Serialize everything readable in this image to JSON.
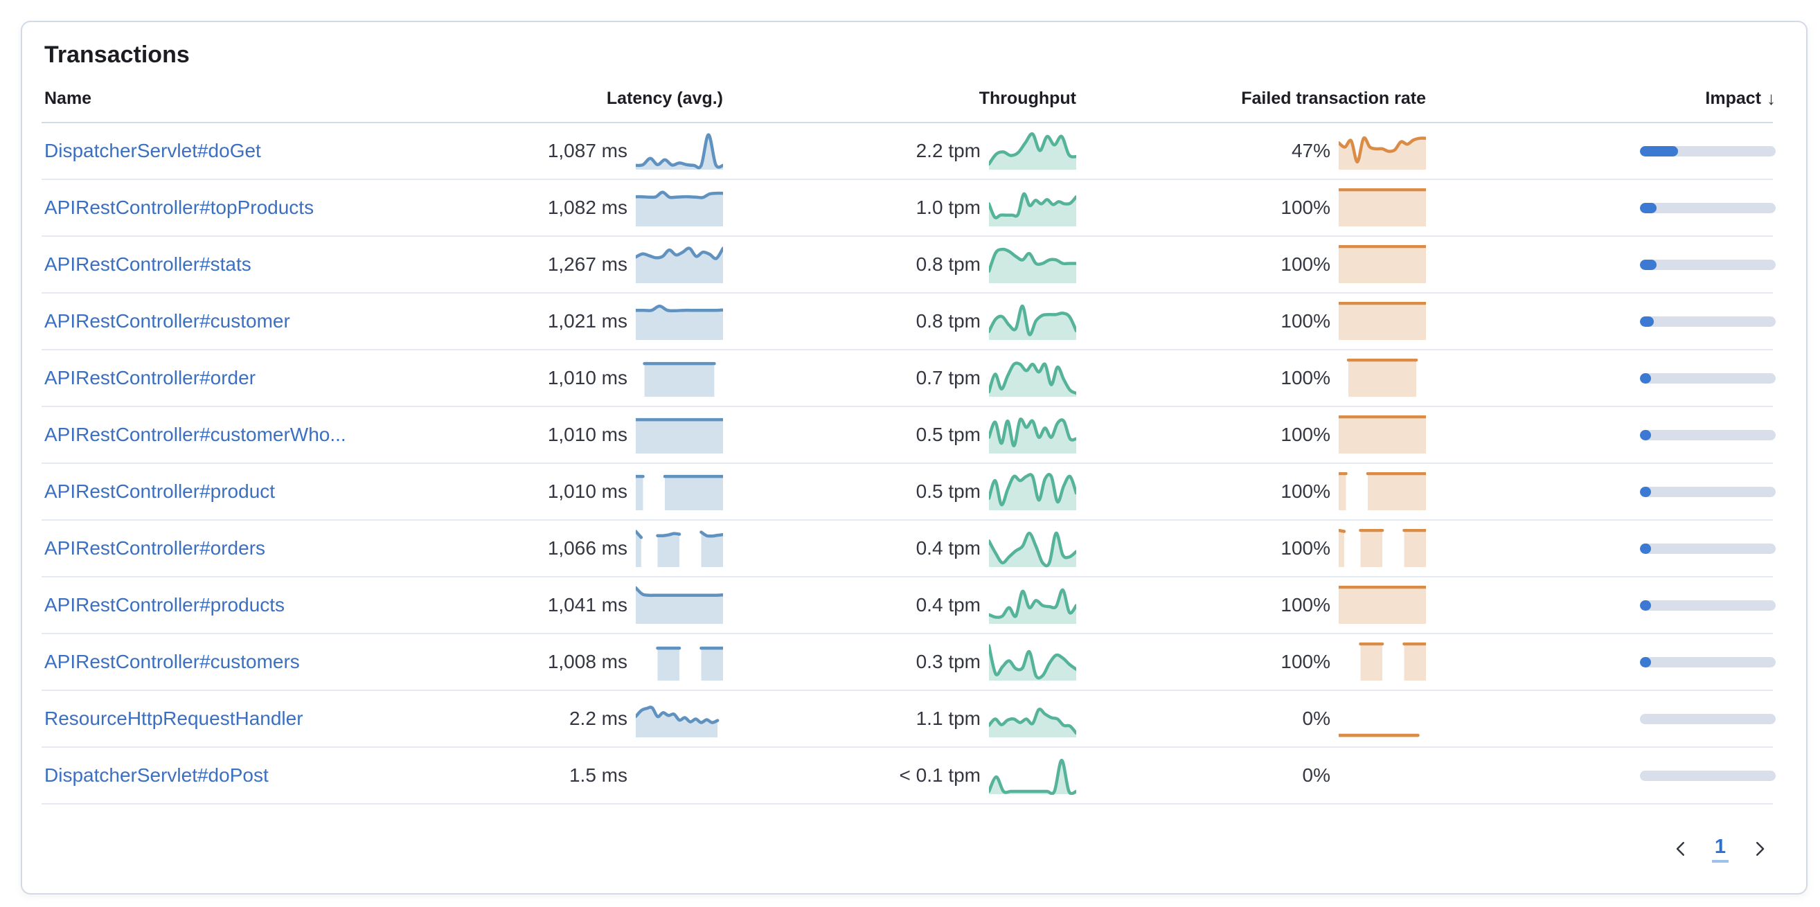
{
  "panel": {
    "title": "Transactions"
  },
  "table": {
    "columns": {
      "name": "Name",
      "latency": "Latency (avg.)",
      "throughput": "Throughput",
      "failed_rate": "Failed transaction rate",
      "impact": "Impact"
    },
    "sort_icon": "↓"
  },
  "colors": {
    "link_blue": "#3A6FC1",
    "latency_line": "#6092C0",
    "latency_fill": "rgba(96,146,192,0.28)",
    "throughput_line": "#54B399",
    "throughput_fill": "rgba(84,179,153,0.28)",
    "failed_line": "#DA8B45",
    "failed_fill": "rgba(218,139,69,0.26)",
    "impact_fill": "#3C79D2",
    "impact_track": "#D8DFEA"
  },
  "pagination": {
    "current_page": "1"
  },
  "rows": [
    {
      "name": "DispatcherServlet#doGet",
      "latency": "1,087 ms",
      "latency_spark": [
        0.08,
        0.1,
        0.28,
        0.1,
        0.24,
        0.09,
        0.15,
        0.1,
        0.08,
        0.08,
        0.95,
        0.1,
        0.08
      ],
      "throughput": "2.2 tpm",
      "throughput_spark": [
        0.12,
        0.4,
        0.46,
        0.36,
        0.44,
        0.72,
        0.97,
        0.5,
        0.9,
        0.66,
        0.9,
        0.38,
        0.33
      ],
      "failed_rate": "47%",
      "failed_spark": [
        0.72,
        0.6,
        0.78,
        0.18,
        0.85,
        0.6,
        0.55,
        0.55,
        0.48,
        0.52,
        0.75,
        0.68,
        0.8,
        0.85,
        0.85
      ],
      "impact_pct": 28
    },
    {
      "name": "APIRestController#topProducts",
      "latency": "1,082 ms",
      "latency_spark": [
        0.8,
        0.8,
        0.79,
        0.8,
        0.93,
        0.79,
        0.79,
        0.8,
        0.8,
        0.79,
        0.78,
        0.88,
        0.9,
        0.9
      ],
      "throughput": "1.0 tpm",
      "throughput_spark": [
        0.6,
        0.22,
        0.28,
        0.28,
        0.28,
        0.3,
        0.88,
        0.55,
        0.7,
        0.6,
        0.72,
        0.58,
        0.66,
        0.6,
        0.62,
        0.8
      ],
      "failed_rate": "100%",
      "failed_spark": [
        1,
        1,
        1,
        1,
        1,
        1,
        1,
        1,
        1,
        1,
        1
      ],
      "impact_pct": 12
    },
    {
      "name": "APIRestController#stats",
      "latency": "1,267 ms",
      "latency_spark": [
        0.7,
        0.79,
        0.74,
        0.68,
        0.72,
        0.9,
        0.76,
        0.84,
        0.95,
        0.72,
        0.84,
        0.78,
        0.66,
        0.95
      ],
      "throughput": "0.8 tpm",
      "throughput_spark": [
        0.3,
        0.82,
        0.92,
        0.86,
        0.72,
        0.62,
        0.8,
        0.52,
        0.52,
        0.62,
        0.62,
        0.52,
        0.52,
        0.52
      ],
      "failed_rate": "100%",
      "failed_spark": [
        1,
        1,
        1,
        1,
        1,
        1,
        1,
        1,
        1,
        1,
        1
      ],
      "impact_pct": 12
    },
    {
      "name": "APIRestController#customer",
      "latency": "1,021 ms",
      "latency_spark": [
        0.8,
        0.8,
        0.8,
        0.92,
        0.8,
        0.79,
        0.8,
        0.8,
        0.8,
        0.8,
        0.8,
        0.81
      ],
      "throughput": "0.8 tpm",
      "throughput_spark": [
        0.2,
        0.55,
        0.62,
        0.38,
        0.28,
        0.92,
        0.12,
        0.5,
        0.66,
        0.68,
        0.68,
        0.72,
        0.62,
        0.22
      ],
      "failed_rate": "100%",
      "failed_spark": [
        1,
        1,
        1,
        1,
        1,
        1,
        1,
        1,
        1,
        1,
        1
      ],
      "impact_pct": 10
    },
    {
      "name": "APIRestController#order",
      "latency": "1,010 ms",
      "latency_spark": [
        null,
        0.9,
        0.9,
        0.9,
        0.9,
        0.9,
        0.9,
        0.9,
        0.9,
        0.9,
        null
      ],
      "throughput": "0.7 tpm",
      "throughput_spark": [
        0.1,
        0.6,
        0.18,
        0.55,
        0.88,
        0.88,
        0.7,
        0.88,
        0.66,
        0.88,
        0.3,
        0.8,
        0.45,
        0.15,
        0.06
      ],
      "failed_rate": "100%",
      "failed_spark": [
        null,
        1,
        1,
        1,
        1,
        1,
        1,
        1,
        1,
        null
      ],
      "impact_pct": 8
    },
    {
      "name": "APIRestController#customerWho...",
      "latency": "1,010 ms",
      "latency_spark": [
        0.92,
        0.92,
        0.92,
        0.92,
        0.92,
        0.92,
        0.92,
        0.92,
        0.92,
        0.92,
        0.92
      ],
      "throughput": "0.5 tpm",
      "throughput_spark": [
        0.42,
        0.85,
        0.25,
        0.88,
        0.18,
        0.92,
        0.7,
        0.88,
        0.42,
        0.68,
        0.42,
        0.82,
        0.88,
        0.38,
        0.38
      ],
      "failed_rate": "100%",
      "failed_spark": [
        1,
        1,
        1,
        1,
        1,
        1,
        1,
        1,
        1,
        1,
        1
      ],
      "impact_pct": 7
    },
    {
      "name": "APIRestController#product",
      "latency": "1,010 ms",
      "latency_spark": [
        0.92,
        0.92,
        null,
        null,
        0.92,
        0.92,
        0.92,
        0.92,
        0.92,
        0.92,
        0.92,
        0.92,
        0.92
      ],
      "throughput": "0.5 tpm",
      "throughput_spark": [
        0.3,
        0.8,
        0.12,
        0.55,
        0.92,
        0.8,
        0.92,
        0.92,
        0.25,
        0.85,
        0.92,
        0.2,
        0.65,
        0.92,
        0.45
      ],
      "failed_rate": "100%",
      "failed_spark": [
        1,
        1,
        null,
        null,
        1,
        1,
        1,
        1,
        1,
        1,
        1,
        1,
        1
      ],
      "impact_pct": 7
    },
    {
      "name": "APIRestController#orders",
      "latency": "1,066 ms",
      "latency_spark": [
        0.97,
        0.8,
        null,
        null,
        0.85,
        0.85,
        0.87,
        0.91,
        0.89,
        null,
        null,
        null,
        0.95,
        0.85,
        0.84,
        0.86,
        0.88
      ],
      "throughput": "0.4 tpm",
      "throughput_spark": [
        0.7,
        0.35,
        0.08,
        0.25,
        0.42,
        0.55,
        0.92,
        0.55,
        0.08,
        0.08,
        0.92,
        0.3,
        0.25,
        0.4
      ],
      "failed_rate": "100%",
      "failed_spark": [
        1,
        0.97,
        null,
        null,
        1,
        1,
        1,
        1,
        1,
        null,
        null,
        null,
        1,
        1,
        1,
        1,
        1
      ],
      "impact_pct": 6
    },
    {
      "name": "APIRestController#products",
      "latency": "1,041 ms",
      "latency_spark": [
        0.98,
        0.8,
        0.77,
        0.77,
        0.77,
        0.77,
        0.77,
        0.77,
        0.77,
        0.77,
        0.77,
        0.77,
        0.77,
        0.78
      ],
      "throughput": "0.4 tpm",
      "throughput_spark": [
        0.22,
        0.15,
        0.18,
        0.42,
        0.18,
        0.88,
        0.42,
        0.62,
        0.48,
        0.45,
        0.45,
        0.92,
        0.28,
        0.48
      ],
      "failed_rate": "100%",
      "failed_spark": [
        1,
        1,
        1,
        1,
        1,
        1,
        1,
        1,
        1,
        1,
        1
      ],
      "impact_pct": 5.5
    },
    {
      "name": "APIRestController#customers",
      "latency": "1,008 ms",
      "latency_spark": [
        null,
        null,
        null,
        null,
        0.88,
        0.88,
        0.88,
        0.88,
        0.88,
        null,
        null,
        null,
        0.88,
        0.88,
        0.88,
        0.88,
        0.88
      ],
      "throughput": "0.3 tpm",
      "throughput_spark": [
        0.95,
        0.15,
        0.35,
        0.52,
        0.3,
        0.32,
        0.78,
        0.1,
        0.1,
        0.45,
        0.68,
        0.6,
        0.42,
        0.28
      ],
      "failed_rate": "100%",
      "failed_spark": [
        null,
        null,
        null,
        null,
        1,
        1,
        1,
        1,
        1,
        null,
        null,
        null,
        1,
        1,
        1,
        1,
        1
      ],
      "impact_pct": 5
    },
    {
      "name": "ResourceHttpRequestHandler",
      "latency": "2.2 ms",
      "latency_spark": [
        0.55,
        0.72,
        0.78,
        0.8,
        0.55,
        0.66,
        0.58,
        0.62,
        0.45,
        0.52,
        0.4,
        0.48,
        0.38,
        0.46,
        0.38,
        0.44,
        null
      ],
      "throughput": "1.1 tpm",
      "throughput_spark": [
        0.3,
        0.48,
        0.32,
        0.45,
        0.48,
        0.38,
        0.48,
        0.35,
        0.75,
        0.62,
        0.52,
        0.48,
        0.3,
        0.28,
        0.08
      ],
      "failed_rate": "0%",
      "failed_spark": [
        0.02,
        0.02,
        0.02,
        0.02,
        0.02,
        0.02,
        0.02,
        0.02,
        0.02,
        0.02,
        0.02,
        null
      ],
      "impact_pct": 0
    },
    {
      "name": "DispatcherServlet#doPost",
      "latency": "1.5 ms",
      "latency_spark": [],
      "throughput": "< 0.1 tpm",
      "throughput_spark": [
        0.04,
        0.45,
        0.04,
        0.04,
        0.04,
        0.04,
        0.04,
        0.04,
        0.04,
        0.04,
        0.92,
        0.04,
        0.04
      ],
      "failed_rate": "0%",
      "failed_spark": [],
      "impact_pct": 0
    }
  ]
}
